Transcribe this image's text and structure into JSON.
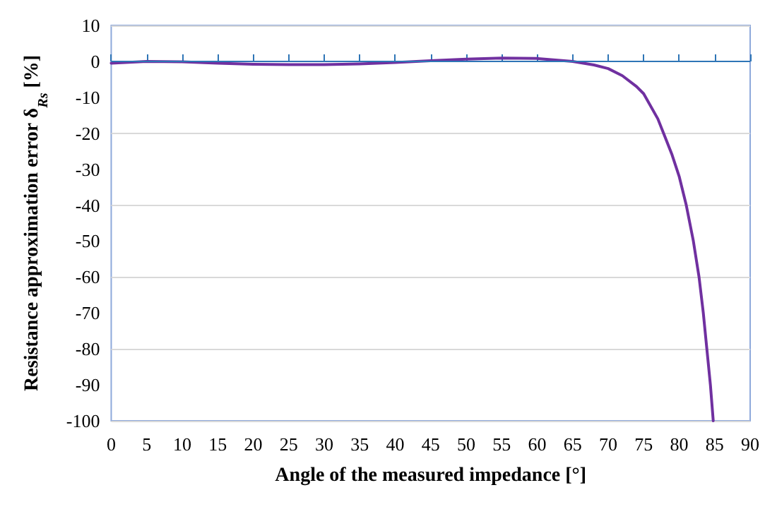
{
  "chart_data": {
    "type": "line",
    "xlabel": "Angle of the measured impedance [°]",
    "ylabel": "Resistance approximation error δ$_{Rs}$ [%]",
    "x": [
      0,
      5,
      10,
      15,
      20,
      25,
      30,
      35,
      40,
      45,
      50,
      55,
      60,
      65,
      68,
      70,
      72,
      74,
      75,
      77,
      78,
      79,
      80,
      81,
      82,
      82.8,
      83.4,
      83.9,
      84.4,
      84.8
    ],
    "series": [
      {
        "color": "#7030a0",
        "values": [
          -0.5,
          0,
          -0.1,
          -0.5,
          -0.8,
          -0.9,
          -0.9,
          -0.7,
          -0.3,
          0.2,
          0.6,
          0.9,
          0.8,
          0,
          -1,
          -2,
          -4,
          -7,
          -9,
          -16,
          -21,
          -26,
          -32,
          -40,
          -50,
          -60,
          -70,
          -80,
          -90,
          -100
        ]
      }
    ],
    "xlim": [
      0,
      90
    ],
    "xticks": [
      0,
      5,
      10,
      15,
      20,
      25,
      30,
      35,
      40,
      45,
      50,
      55,
      60,
      65,
      70,
      75,
      80,
      85,
      90
    ],
    "ylim": [
      -100,
      10
    ],
    "yticks": [
      -100,
      -90,
      -80,
      -70,
      -60,
      -50,
      -40,
      -30,
      -20,
      -10,
      0,
      10
    ],
    "ref_lines": [
      {
        "axis": "y",
        "value": 0,
        "color": "#2e75b6"
      }
    ],
    "grid": "y",
    "marker": "none",
    "line_style": "solid"
  }
}
